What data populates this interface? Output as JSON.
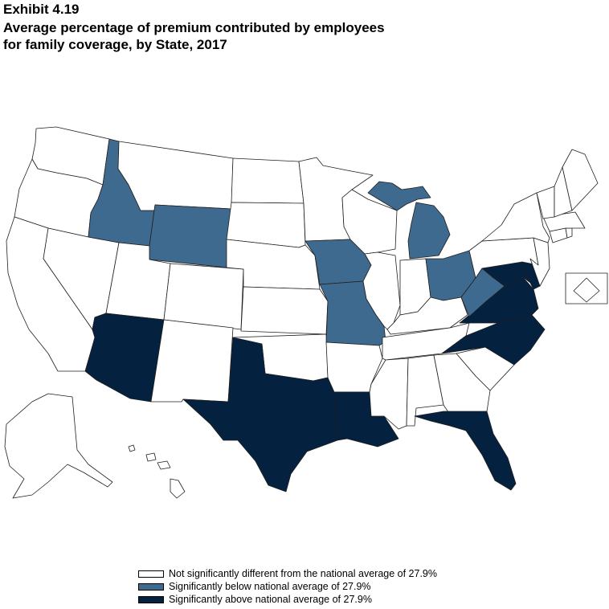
{
  "header": {
    "exhibit": "Exhibit 4.19",
    "title_line1": "Average percentage of premium contributed by employees",
    "title_line2": "for family coverage, by State, 2017"
  },
  "colors": {
    "not_significant": "#ffffff",
    "below": "#3f6a8f",
    "above": "#04213f",
    "stroke": "#1f1f1f"
  },
  "legend": {
    "items": [
      {
        "key": "not_significant",
        "label": "Not significantly different from the national average of 27.9%"
      },
      {
        "key": "below",
        "label": "Significantly below national average of 27.9%"
      },
      {
        "key": "above",
        "label": "Significantly above national average of 27.9%"
      }
    ]
  },
  "map_data": {
    "states": [
      {
        "id": "WA",
        "category": "not_significant"
      },
      {
        "id": "OR",
        "category": "not_significant"
      },
      {
        "id": "CA",
        "category": "not_significant"
      },
      {
        "id": "NV",
        "category": "not_significant"
      },
      {
        "id": "ID",
        "category": "below"
      },
      {
        "id": "MT",
        "category": "not_significant"
      },
      {
        "id": "WY",
        "category": "below"
      },
      {
        "id": "UT",
        "category": "not_significant"
      },
      {
        "id": "AZ",
        "category": "above"
      },
      {
        "id": "CO",
        "category": "not_significant"
      },
      {
        "id": "NM",
        "category": "not_significant"
      },
      {
        "id": "ND",
        "category": "not_significant"
      },
      {
        "id": "SD",
        "category": "not_significant"
      },
      {
        "id": "NE",
        "category": "not_significant"
      },
      {
        "id": "KS",
        "category": "not_significant"
      },
      {
        "id": "OK",
        "category": "not_significant"
      },
      {
        "id": "TX",
        "category": "above"
      },
      {
        "id": "MN",
        "category": "not_significant"
      },
      {
        "id": "IA",
        "category": "below"
      },
      {
        "id": "MO",
        "category": "below"
      },
      {
        "id": "AR",
        "category": "not_significant"
      },
      {
        "id": "LA",
        "category": "above"
      },
      {
        "id": "WI",
        "category": "not_significant"
      },
      {
        "id": "IL",
        "category": "not_significant"
      },
      {
        "id": "MI",
        "category": "below"
      },
      {
        "id": "MI_UP",
        "category": "below"
      },
      {
        "id": "IN",
        "category": "not_significant"
      },
      {
        "id": "OH",
        "category": "below"
      },
      {
        "id": "KY",
        "category": "not_significant"
      },
      {
        "id": "TN",
        "category": "not_significant"
      },
      {
        "id": "MS",
        "category": "not_significant"
      },
      {
        "id": "AL",
        "category": "not_significant"
      },
      {
        "id": "GA",
        "category": "not_significant"
      },
      {
        "id": "FL",
        "category": "above"
      },
      {
        "id": "SC",
        "category": "not_significant"
      },
      {
        "id": "NC",
        "category": "above"
      },
      {
        "id": "VA",
        "category": "above"
      },
      {
        "id": "WV",
        "category": "below"
      },
      {
        "id": "MD",
        "category": "above"
      },
      {
        "id": "DE",
        "category": "above"
      },
      {
        "id": "PA",
        "category": "not_significant"
      },
      {
        "id": "NJ",
        "category": "not_significant"
      },
      {
        "id": "NY",
        "category": "not_significant"
      },
      {
        "id": "CT",
        "category": "not_significant"
      },
      {
        "id": "RI",
        "category": "not_significant"
      },
      {
        "id": "MA",
        "category": "not_significant"
      },
      {
        "id": "VT",
        "category": "not_significant"
      },
      {
        "id": "NH",
        "category": "not_significant"
      },
      {
        "id": "ME",
        "category": "not_significant"
      },
      {
        "id": "AK",
        "category": "not_significant"
      },
      {
        "id": "HI",
        "category": "not_significant"
      },
      {
        "id": "DC",
        "category": "not_significant"
      }
    ]
  }
}
